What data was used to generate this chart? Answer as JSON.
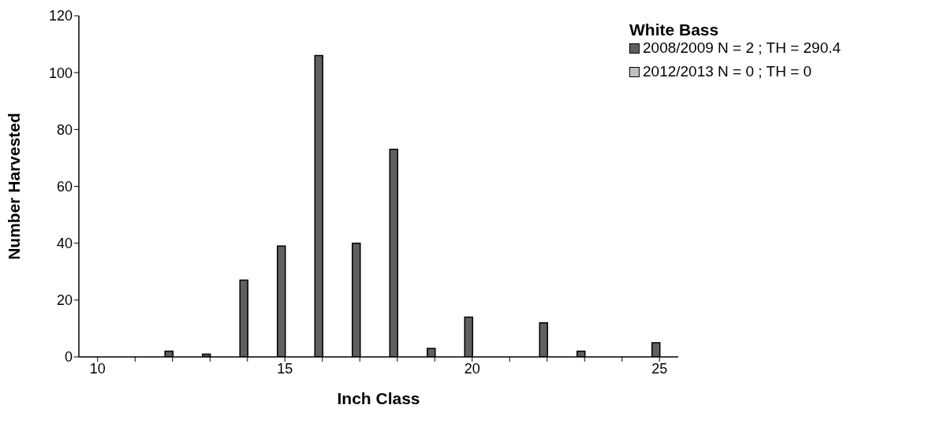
{
  "chart_data": {
    "type": "bar",
    "xlabel": "Inch Class",
    "ylabel": "Number Harvested",
    "legend_title": "White Bass",
    "categories": [
      "10",
      null,
      null,
      null,
      null,
      "15",
      null,
      null,
      null,
      null,
      "20",
      null,
      null,
      null,
      null,
      "25"
    ],
    "series": [
      {
        "name": "2008/2009 N = 2 ; TH = 290.4",
        "color": "#606060",
        "values": [
          0,
          0,
          2,
          1,
          27,
          39,
          106,
          40,
          73,
          3,
          14,
          0,
          12,
          2,
          0,
          5
        ]
      },
      {
        "name": "2012/2013 N = 0 ; TH = 0",
        "color": "#c0c0c0",
        "values": [
          0,
          0,
          0,
          0,
          0,
          0,
          0,
          0,
          0,
          0,
          0,
          0,
          0,
          0,
          0,
          0
        ]
      }
    ],
    "ylim": [
      0,
      120
    ],
    "yticks": [
      0,
      20,
      40,
      60,
      80,
      100,
      120
    ],
    "grid": false,
    "legend": "top right"
  }
}
